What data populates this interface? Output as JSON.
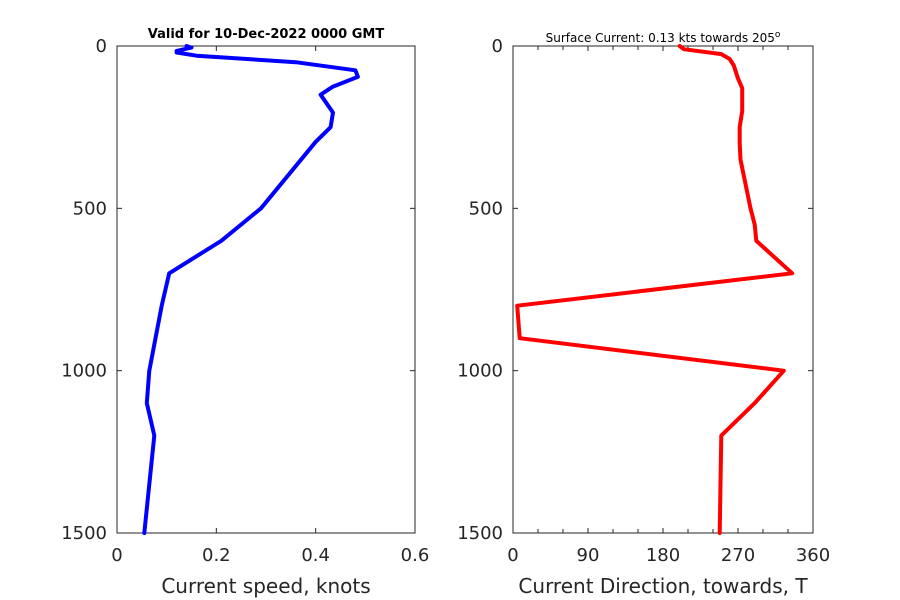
{
  "chart_data": [
    {
      "type": "line",
      "title": "Valid for 10-Dec-2022 0000 GMT",
      "xlabel": "Current speed, knots",
      "ylabel": "",
      "xlim": [
        0,
        0.6
      ],
      "ylim": [
        0,
        1500
      ],
      "y_reversed": true,
      "xticks": [
        "0",
        "0.2",
        "0.4",
        "0.6"
      ],
      "yticks": [
        "0",
        "500",
        "1000",
        "1500"
      ],
      "color": "#0000ff",
      "series": [
        {
          "x": [
            0.14,
            0.15,
            0.12,
            0.12,
            0.16,
            0.36,
            0.48,
            0.485,
            0.435,
            0.41,
            0.435,
            0.43,
            0.4,
            0.29,
            0.21,
            0.105,
            0.09,
            0.065,
            0.06,
            0.075,
            0.055
          ],
          "y": [
            0,
            5,
            15,
            20,
            30,
            50,
            75,
            95,
            125,
            150,
            205,
            250,
            295,
            500,
            600,
            700,
            800,
            1000,
            1100,
            1200,
            1500
          ]
        }
      ]
    },
    {
      "type": "line",
      "title": "Surface Current: 0.13 kts towards 205",
      "title_superscript": "o",
      "xlabel": "Current Direction, towards, T",
      "ylabel": "",
      "xlim": [
        0,
        360
      ],
      "ylim": [
        0,
        1500
      ],
      "y_reversed": true,
      "xticks": [
        "0",
        "90",
        "180",
        "270",
        "360"
      ],
      "yticks": [
        "0",
        "500",
        "1000",
        "1500"
      ],
      "color": "#ff0000",
      "series": [
        {
          "x": [
            200,
            205,
            250,
            260,
            265,
            270,
            275,
            275,
            272,
            272,
            273,
            285,
            290,
            292,
            335,
            5,
            8,
            325,
            290,
            250,
            248
          ],
          "y": [
            0,
            10,
            25,
            40,
            60,
            100,
            130,
            200,
            250,
            300,
            350,
            500,
            550,
            600,
            700,
            800,
            900,
            1000,
            1100,
            1200,
            1500
          ]
        }
      ]
    }
  ]
}
